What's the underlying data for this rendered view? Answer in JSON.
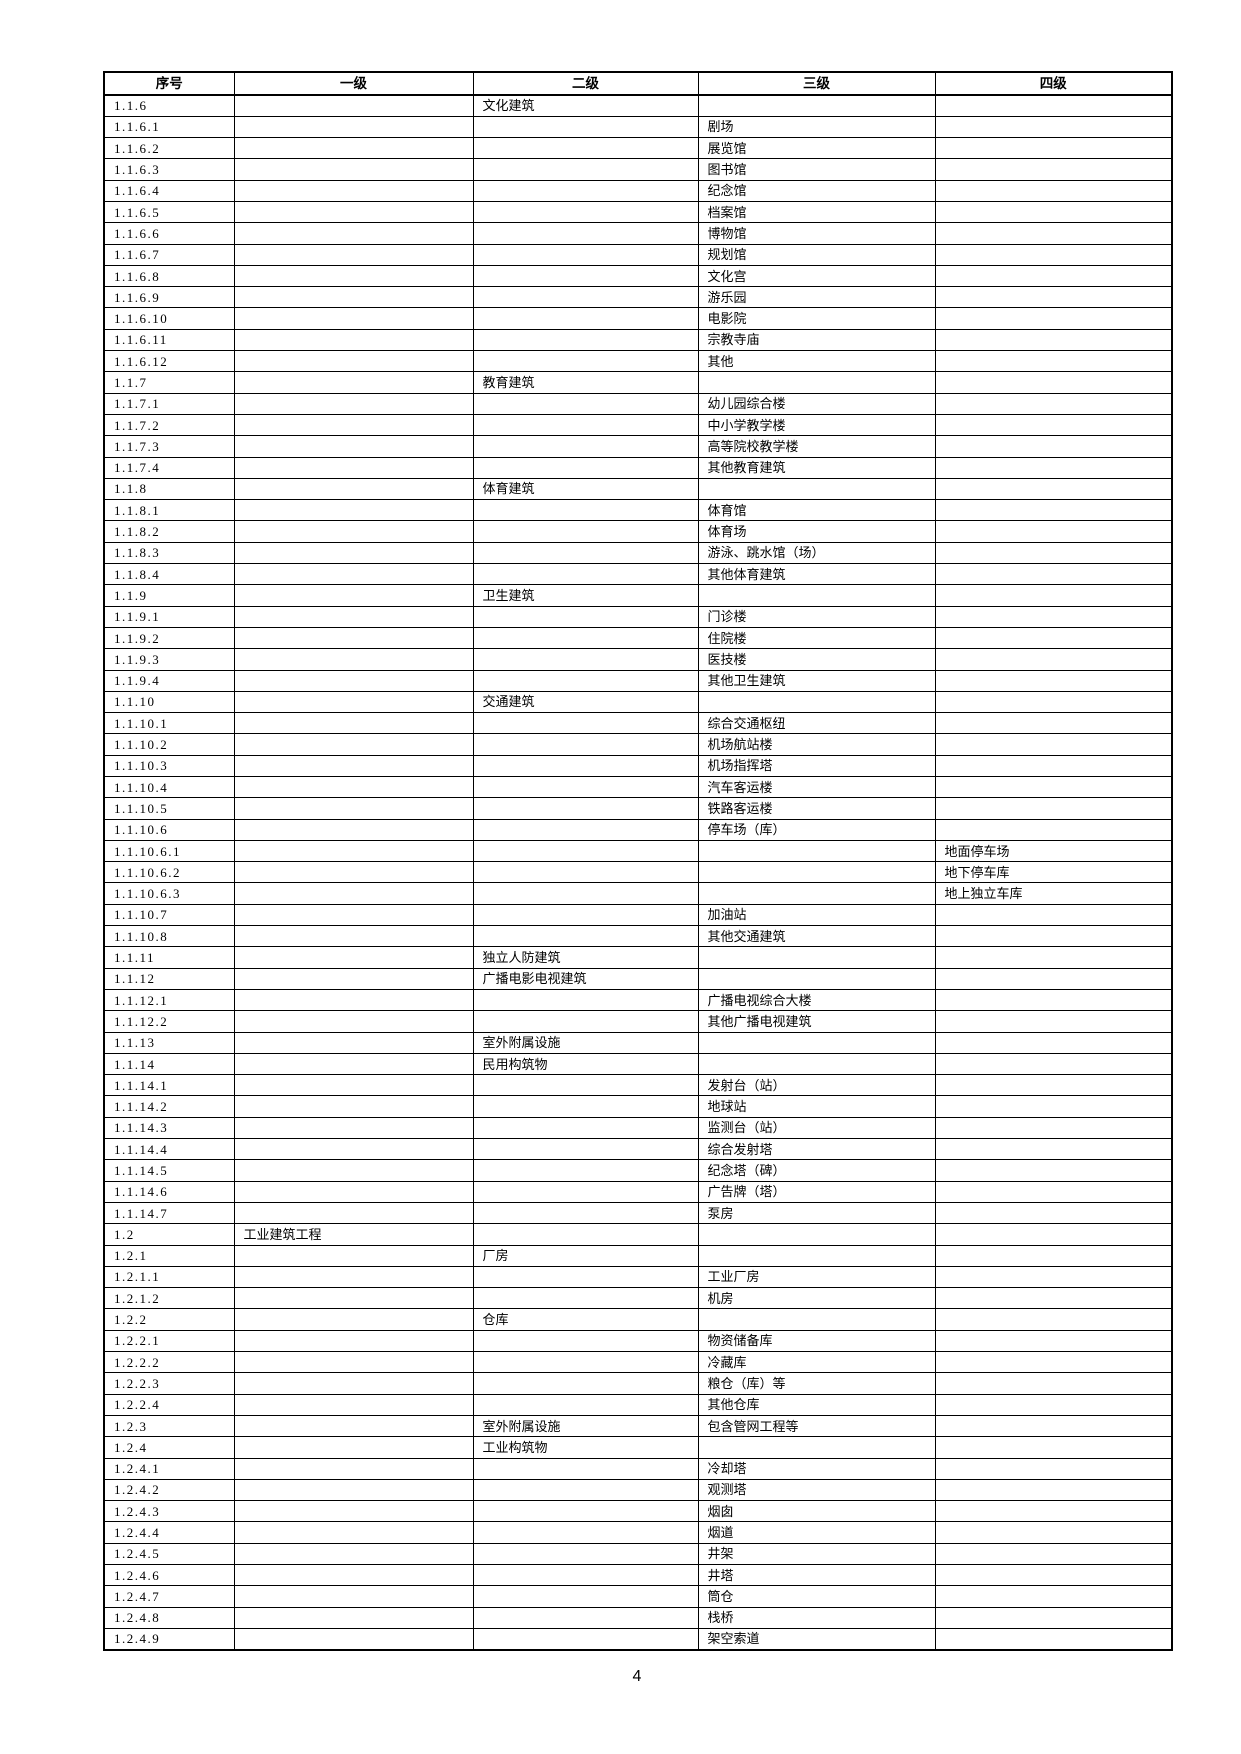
{
  "document": {
    "page_number": "4",
    "table": {
      "headers": [
        "序号",
        "一级",
        "二级",
        "三级",
        "四级"
      ],
      "rows": [
        [
          "1.1.6",
          "",
          "文化建筑",
          "",
          ""
        ],
        [
          "1.1.6.1",
          "",
          "",
          "剧场",
          ""
        ],
        [
          "1.1.6.2",
          "",
          "",
          "展览馆",
          ""
        ],
        [
          "1.1.6.3",
          "",
          "",
          "图书馆",
          ""
        ],
        [
          "1.1.6.4",
          "",
          "",
          "纪念馆",
          ""
        ],
        [
          "1.1.6.5",
          "",
          "",
          "档案馆",
          ""
        ],
        [
          "1.1.6.6",
          "",
          "",
          "博物馆",
          ""
        ],
        [
          "1.1.6.7",
          "",
          "",
          "规划馆",
          ""
        ],
        [
          "1.1.6.8",
          "",
          "",
          "文化宫",
          ""
        ],
        [
          "1.1.6.9",
          "",
          "",
          "游乐园",
          ""
        ],
        [
          "1.1.6.10",
          "",
          "",
          "电影院",
          ""
        ],
        [
          "1.1.6.11",
          "",
          "",
          "宗教寺庙",
          ""
        ],
        [
          "1.1.6.12",
          "",
          "",
          "其他",
          ""
        ],
        [
          "1.1.7",
          "",
          "教育建筑",
          "",
          ""
        ],
        [
          "1.1.7.1",
          "",
          "",
          "幼儿园综合楼",
          ""
        ],
        [
          "1.1.7.2",
          "",
          "",
          "中小学教学楼",
          ""
        ],
        [
          "1.1.7.3",
          "",
          "",
          "高等院校教学楼",
          ""
        ],
        [
          "1.1.7.4",
          "",
          "",
          "其他教育建筑",
          ""
        ],
        [
          "1.1.8",
          "",
          "体育建筑",
          "",
          ""
        ],
        [
          "1.1.8.1",
          "",
          "",
          "体育馆",
          ""
        ],
        [
          "1.1.8.2",
          "",
          "",
          "体育场",
          ""
        ],
        [
          "1.1.8.3",
          "",
          "",
          "游泳、跳水馆（场）",
          ""
        ],
        [
          "1.1.8.4",
          "",
          "",
          "其他体育建筑",
          ""
        ],
        [
          "1.1.9",
          "",
          "卫生建筑",
          "",
          ""
        ],
        [
          "1.1.9.1",
          "",
          "",
          "门诊楼",
          ""
        ],
        [
          "1.1.9.2",
          "",
          "",
          "住院楼",
          ""
        ],
        [
          "1.1.9.3",
          "",
          "",
          "医技楼",
          ""
        ],
        [
          "1.1.9.4",
          "",
          "",
          "其他卫生建筑",
          ""
        ],
        [
          "1.1.10",
          "",
          "交通建筑",
          "",
          ""
        ],
        [
          "1.1.10.1",
          "",
          "",
          "综合交通枢纽",
          ""
        ],
        [
          "1.1.10.2",
          "",
          "",
          "机场航站楼",
          ""
        ],
        [
          "1.1.10.3",
          "",
          "",
          "机场指挥塔",
          ""
        ],
        [
          "1.1.10.4",
          "",
          "",
          "汽车客运楼",
          ""
        ],
        [
          "1.1.10.5",
          "",
          "",
          "铁路客运楼",
          ""
        ],
        [
          "1.1.10.6",
          "",
          "",
          "停车场（库）",
          ""
        ],
        [
          "1.1.10.6.1",
          "",
          "",
          "",
          "地面停车场"
        ],
        [
          "1.1.10.6.2",
          "",
          "",
          "",
          "地下停车库"
        ],
        [
          "1.1.10.6.3",
          "",
          "",
          "",
          "地上独立车库"
        ],
        [
          "1.1.10.7",
          "",
          "",
          "加油站",
          ""
        ],
        [
          "1.1.10.8",
          "",
          "",
          "其他交通建筑",
          ""
        ],
        [
          "1.1.11",
          "",
          "独立人防建筑",
          "",
          ""
        ],
        [
          "1.1.12",
          "",
          "广播电影电视建筑",
          "",
          ""
        ],
        [
          "1.1.12.1",
          "",
          "",
          "广播电视综合大楼",
          ""
        ],
        [
          "1.1.12.2",
          "",
          "",
          "其他广播电视建筑",
          ""
        ],
        [
          "1.1.13",
          "",
          "室外附属设施",
          "",
          ""
        ],
        [
          "1.1.14",
          "",
          "民用构筑物",
          "",
          ""
        ],
        [
          "1.1.14.1",
          "",
          "",
          "发射台（站）",
          ""
        ],
        [
          "1.1.14.2",
          "",
          "",
          "地球站",
          ""
        ],
        [
          "1.1.14.3",
          "",
          "",
          "监测台（站）",
          ""
        ],
        [
          "1.1.14.4",
          "",
          "",
          "综合发射塔",
          ""
        ],
        [
          "1.1.14.5",
          "",
          "",
          "纪念塔（碑）",
          ""
        ],
        [
          "1.1.14.6",
          "",
          "",
          "广告牌（塔）",
          ""
        ],
        [
          "1.1.14.7",
          "",
          "",
          "泵房",
          ""
        ],
        [
          "1.2",
          "工业建筑工程",
          "",
          "",
          ""
        ],
        [
          "1.2.1",
          "",
          "厂房",
          "",
          ""
        ],
        [
          "1.2.1.1",
          "",
          "",
          "工业厂房",
          ""
        ],
        [
          "1.2.1.2",
          "",
          "",
          "机房",
          ""
        ],
        [
          "1.2.2",
          "",
          "仓库",
          "",
          ""
        ],
        [
          "1.2.2.1",
          "",
          "",
          "物资储备库",
          ""
        ],
        [
          "1.2.2.2",
          "",
          "",
          "冷藏库",
          ""
        ],
        [
          "1.2.2.3",
          "",
          "",
          "粮仓（库）等",
          ""
        ],
        [
          "1.2.2.4",
          "",
          "",
          "其他仓库",
          ""
        ],
        [
          "1.2.3",
          "",
          "室外附属设施",
          "包含管网工程等",
          ""
        ],
        [
          "1.2.4",
          "",
          "工业构筑物",
          "",
          ""
        ],
        [
          "1.2.4.1",
          "",
          "",
          "冷却塔",
          ""
        ],
        [
          "1.2.4.2",
          "",
          "",
          "观测塔",
          ""
        ],
        [
          "1.2.4.3",
          "",
          "",
          "烟囱",
          ""
        ],
        [
          "1.2.4.4",
          "",
          "",
          "烟道",
          ""
        ],
        [
          "1.2.4.5",
          "",
          "",
          "井架",
          ""
        ],
        [
          "1.2.4.6",
          "",
          "",
          "井塔",
          ""
        ],
        [
          "1.2.4.7",
          "",
          "",
          "筒仓",
          ""
        ],
        [
          "1.2.4.8",
          "",
          "",
          "栈桥",
          ""
        ],
        [
          "1.2.4.9",
          "",
          "",
          "架空索道",
          ""
        ]
      ]
    }
  }
}
